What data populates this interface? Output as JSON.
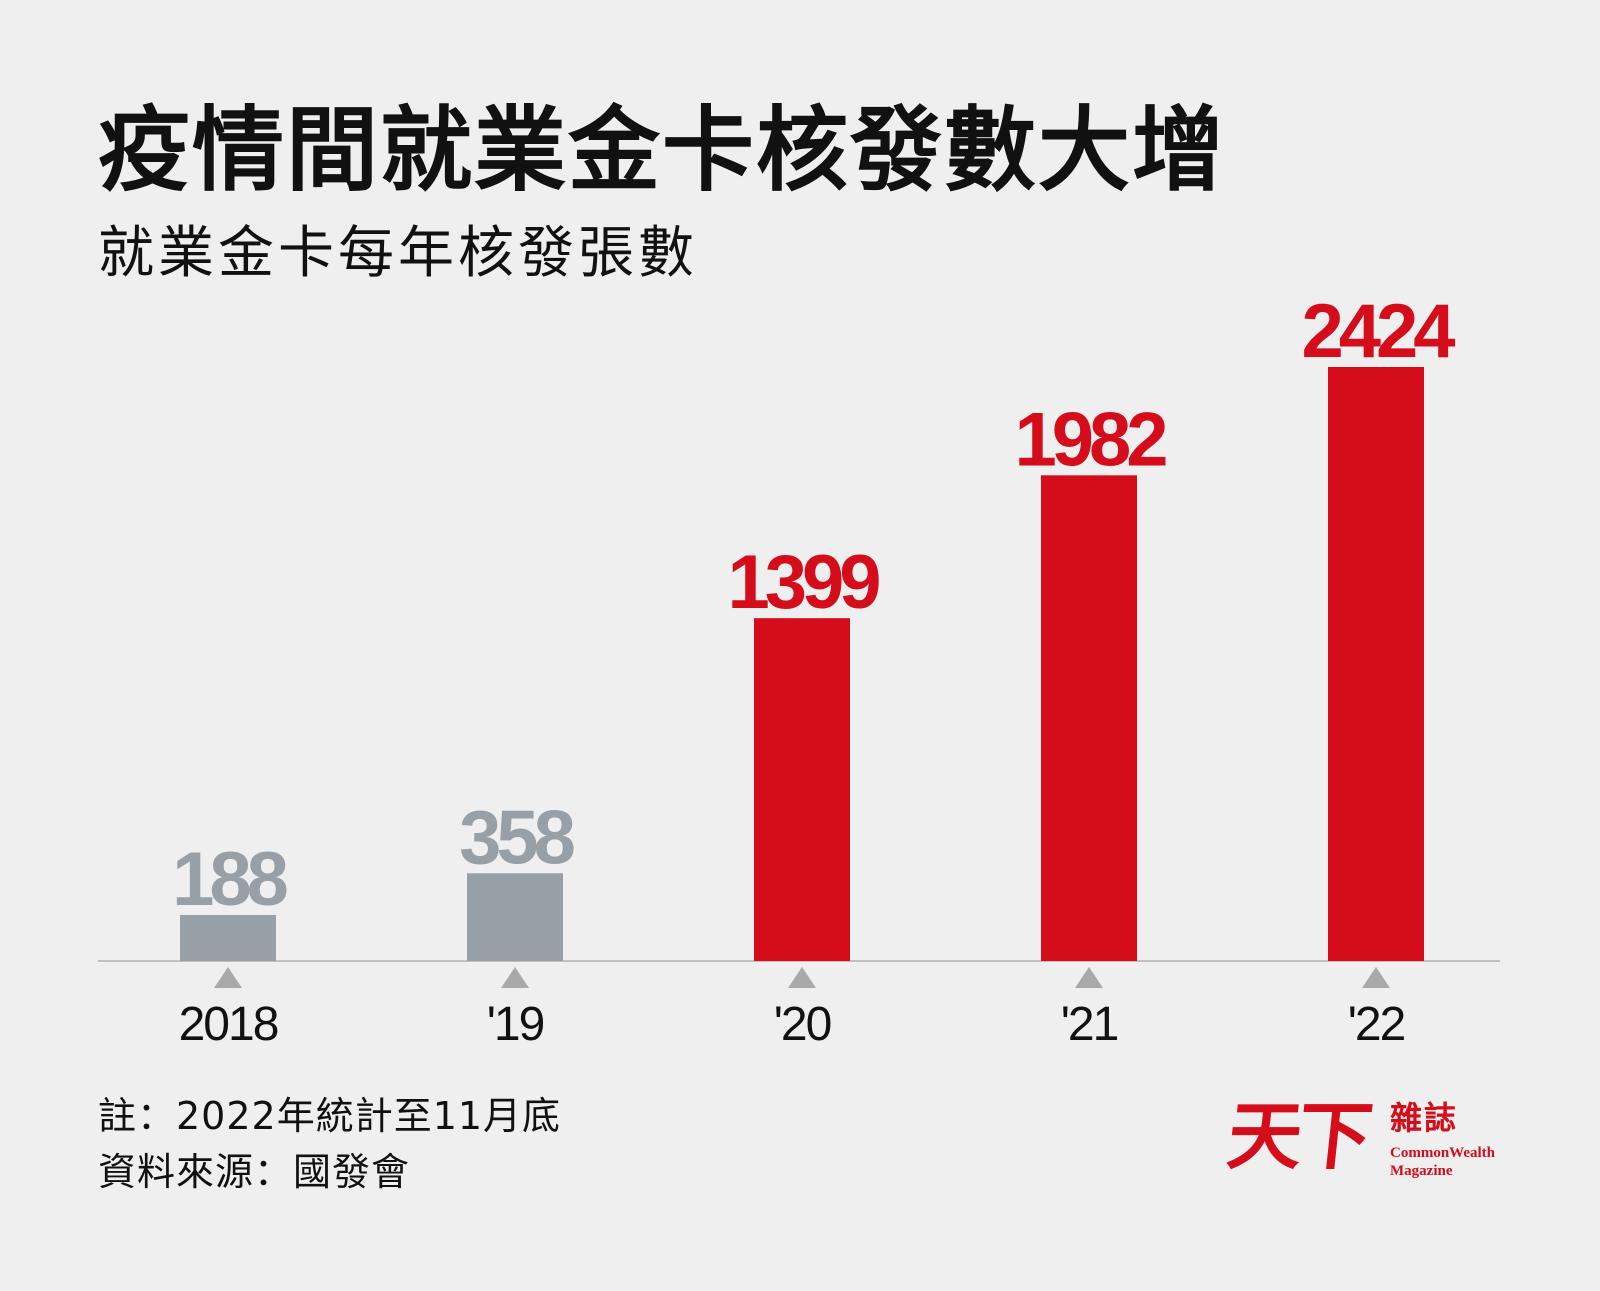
{
  "header": {
    "title": "疫情間就業金卡核發數大增",
    "subtitle": "就業金卡每年核發張數"
  },
  "chart_data": {
    "type": "bar",
    "title": "疫情間就業金卡核發數大增",
    "subtitle": "就業金卡每年核發張數",
    "categories": [
      "2018",
      "'19",
      "'20",
      "'21",
      "'22"
    ],
    "values": [
      188,
      358,
      1399,
      1982,
      2424
    ],
    "value_labels": [
      "188",
      "358",
      "1399",
      "1982",
      "2424"
    ],
    "bar_colors": [
      "#97a0a7",
      "#97a0a7",
      "#d50c1a",
      "#d50c1a",
      "#d50c1a"
    ],
    "xlabel": "",
    "ylabel": "",
    "ylim": [
      0,
      2424
    ],
    "grid": false
  },
  "footer": {
    "note": "註：2022年統計至11月底",
    "source": "資料來源：國發會"
  },
  "logo": {
    "mark": "天下",
    "name": "雜誌",
    "english_line1": "CommonWealth",
    "english_line2": "Magazine"
  },
  "colors": {
    "background": "#efefef",
    "accent": "#d50c1a",
    "muted_bar": "#97a0a7",
    "baseline": "#c0c0c0",
    "tick_marker": "#a9a9a9"
  }
}
